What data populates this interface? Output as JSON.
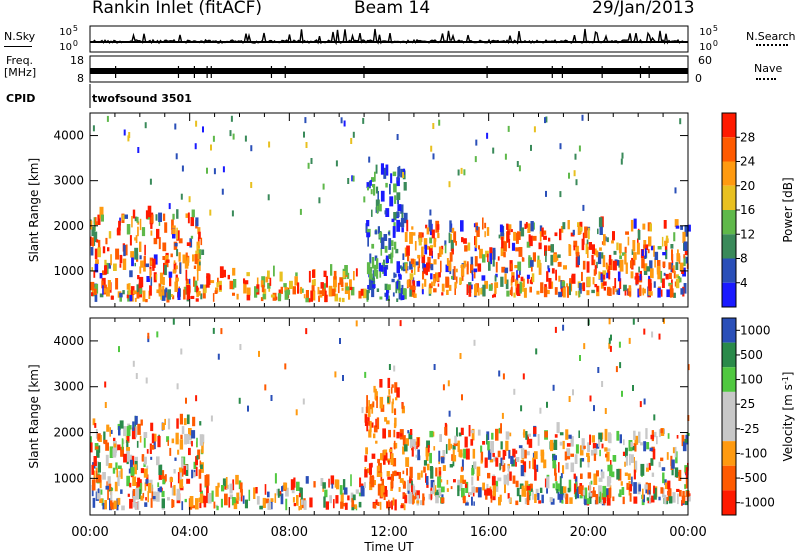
{
  "header": {
    "title": "Rankin Inlet (fitACF)",
    "beam": "Beam 14",
    "date": "29/Jan/2013"
  },
  "strip_labels": {
    "nsky": "N.Sky",
    "nsearch": "N.Search",
    "freq": "Freq.",
    "freq_unit": "[MHz]",
    "nave": "Nave",
    "cpid": "CPID",
    "cpid_value": "twofsound 3501"
  },
  "strip_ticks": {
    "nsky_top": "10^5",
    "nsky_bottom": "10^0",
    "freq_top": "18",
    "freq_bottom": "8",
    "nave_top": "60",
    "nave_bottom": "0"
  },
  "colors": {
    "power_scale": [
      "#1a1aff",
      "#2a4fb8",
      "#3a8a5a",
      "#5fb84a",
      "#e8c020",
      "#ff9a10",
      "#ff5a00",
      "#ff1a00"
    ],
    "velocity_scale": [
      "#ff1a00",
      "#ff5a00",
      "#ff9a10",
      "#c8c8c8",
      "#c8c8c8",
      "#50c840",
      "#2a8a4a",
      "#2a4fb8"
    ]
  },
  "chart_data": [
    {
      "type": "heatmap",
      "panel": "power",
      "ylabel": "Slant Range [km]",
      "y_ticks": [
        "1000",
        "2000",
        "3000",
        "4000"
      ],
      "ylim": [
        200,
        4500
      ],
      "x_ticks": [
        "00:00",
        "04:00",
        "08:00",
        "12:00",
        "16:00",
        "20:00",
        "00:00"
      ],
      "xlim_hours": [
        0,
        24
      ],
      "colorbar": {
        "label": "Power [dB]",
        "ticks": [
          "28",
          "24",
          "20",
          "16",
          "12",
          "8",
          "4"
        ],
        "range": [
          0,
          32
        ]
      },
      "scatter_regions": [
        {
          "t_start": 0.0,
          "t_end": 4.5,
          "r_min": 300,
          "r_max": 2200,
          "level": "high"
        },
        {
          "t_start": 4.5,
          "t_end": 11.0,
          "r_min": 300,
          "r_max": 900,
          "level": "mid"
        },
        {
          "t_start": 11.0,
          "t_end": 12.6,
          "r_min": 300,
          "r_max": 3200,
          "level": "low"
        },
        {
          "t_start": 12.6,
          "t_end": 24.0,
          "r_min": 400,
          "r_max": 2000,
          "level": "high"
        }
      ]
    },
    {
      "type": "heatmap",
      "panel": "velocity",
      "ylabel": "Slant Range [km]",
      "y_ticks": [
        "1000",
        "2000",
        "3000",
        "4000"
      ],
      "ylim": [
        200,
        4500
      ],
      "x_ticks": [
        "00:00",
        "04:00",
        "08:00",
        "12:00",
        "16:00",
        "20:00",
        "00:00"
      ],
      "xlim_hours": [
        0,
        24
      ],
      "xlabel": "Time UT",
      "colorbar": {
        "label": "Velocity [m s^-1]",
        "ticks": [
          "1000",
          "500",
          "100",
          "25",
          "-25",
          "-100",
          "-500",
          "-1000"
        ],
        "range": [
          -1000,
          1000
        ]
      },
      "scatter_regions": [
        {
          "t_start": 0.0,
          "t_end": 4.5,
          "r_min": 300,
          "r_max": 2200,
          "sign": "mixed"
        },
        {
          "t_start": 4.5,
          "t_end": 11.0,
          "r_min": 300,
          "r_max": 900,
          "sign": "mixed"
        },
        {
          "t_start": 11.0,
          "t_end": 12.6,
          "r_min": 300,
          "r_max": 3000,
          "sign": "negative"
        },
        {
          "t_start": 12.6,
          "t_end": 24.0,
          "r_min": 400,
          "r_max": 2000,
          "sign": "mixed"
        }
      ]
    }
  ]
}
